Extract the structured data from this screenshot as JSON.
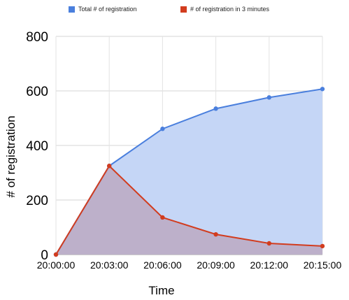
{
  "chart_data": {
    "type": "area",
    "title": "",
    "xlabel": "Time",
    "ylabel": "# of registration",
    "x": [
      "20:00:00",
      "20:03:00",
      "20:06:00",
      "20:09:00",
      "20:12:00",
      "20:15:00"
    ],
    "ylim": [
      0,
      800
    ],
    "yticks": [
      "0",
      "200",
      "400",
      "600",
      "800"
    ],
    "grid": true,
    "legend_position": "top",
    "series": [
      {
        "name": "Total # of registration",
        "color": "#4a7fdd",
        "fill": "#c5d6f6",
        "values": [
          0,
          325,
          461,
          535,
          576,
          607
        ]
      },
      {
        "name": "# of registration in 3 minutes",
        "color": "#d23c1e",
        "fill": "#b9a3bb",
        "values": [
          0,
          325,
          136,
          74,
          41,
          31
        ]
      }
    ]
  }
}
